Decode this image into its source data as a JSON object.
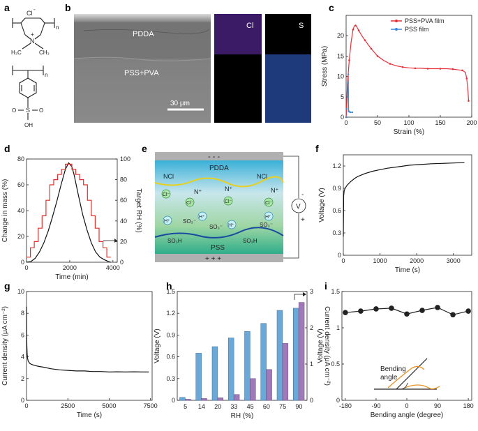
{
  "panel_labels": {
    "a": "a",
    "b": "b",
    "c": "c",
    "d": "d",
    "e": "e",
    "f": "f",
    "g": "g",
    "h": "h",
    "i": "i"
  },
  "panel_a": {
    "cl_label": "Cl",
    "minus": "-",
    "plus": "+",
    "n_label": "n",
    "N": "N",
    "ch3_left": "H₃C",
    "ch3_right": "CH₃",
    "s_label": "S",
    "o_label": "O",
    "oh_label": "OH"
  },
  "panel_b": {
    "pdda_label": "PDDA",
    "pss_pva_label": "PSS+PVA",
    "scale_label": "30 μm",
    "map_cl_label": "Cl",
    "map_s_label": "S",
    "colors": {
      "cl_map": "#5a2a8a",
      "s_map": "#3a5ab0"
    }
  },
  "chart_data": [
    {
      "id": "c",
      "type": "line",
      "xlabel": "Strain (%)",
      "ylabel": "Stress (MPa)",
      "xlim": [
        0,
        200
      ],
      "ylim": [
        0,
        25
      ],
      "xticks": [
        0,
        50,
        100,
        150,
        200
      ],
      "yticks": [
        0,
        5,
        10,
        15,
        20
      ],
      "legend": [
        "PSS+PVA film",
        "PSS film"
      ],
      "series": [
        {
          "name": "PSS+PVA film",
          "color": "#e8303a",
          "x": [
            0,
            2,
            5,
            8,
            11,
            13,
            15,
            17,
            20,
            25,
            30,
            35,
            40,
            45,
            50,
            60,
            70,
            80,
            90,
            100,
            110,
            120,
            130,
            140,
            150,
            160,
            170,
            180,
            185,
            190,
            192,
            194,
            195
          ],
          "y": [
            0,
            8,
            14,
            18.5,
            21.5,
            22.4,
            22.5,
            22.2,
            21.3,
            20,
            18.9,
            17.8,
            16.8,
            15.9,
            15,
            13.9,
            13.1,
            12.6,
            12.3,
            12.1,
            12,
            12,
            11.9,
            11.9,
            11.9,
            11.9,
            11.8,
            11.6,
            11.5,
            11,
            9.5,
            6.5,
            4
          ]
        },
        {
          "name": "PSS film",
          "color": "#3a8ad8",
          "x": [
            0,
            1,
            2,
            3,
            3.5,
            4,
            5,
            7,
            10
          ],
          "y": [
            0,
            2,
            5,
            8.5,
            10.5,
            1.5,
            1.3,
            1.2,
            1.2
          ]
        }
      ]
    },
    {
      "id": "d",
      "type": "line",
      "xlabel": "Time (min)",
      "ylabel": "Change in mass (%)",
      "ylabel_right": "Target RH (%)",
      "xlim": [
        0,
        4200
      ],
      "ylim": [
        0,
        80
      ],
      "ylim_right": [
        0,
        100
      ],
      "xticks": [
        0,
        2000,
        4000
      ],
      "yticks": [
        0,
        20,
        40,
        60,
        80
      ],
      "yticks_right": [
        0,
        20,
        40,
        60,
        80,
        100
      ],
      "series": [
        {
          "name": "Change in mass",
          "color": "#111111",
          "x": [
            0,
            200,
            400,
            600,
            800,
            1000,
            1200,
            1400,
            1600,
            1800,
            1950,
            2100,
            2200,
            2400,
            2600,
            2800,
            3000,
            3200,
            3400,
            3600,
            3800,
            3900
          ],
          "y": [
            0,
            0.5,
            3,
            8,
            15,
            24,
            35,
            47,
            60,
            72,
            77,
            74,
            68,
            52,
            37,
            25,
            15,
            8,
            4,
            2,
            0.5,
            0
          ]
        },
        {
          "name": "Target RH",
          "color": "#e0302a",
          "axis": "right",
          "x": [
            0,
            180,
            180,
            360,
            360,
            540,
            540,
            720,
            720,
            900,
            900,
            1080,
            1080,
            1260,
            1260,
            1440,
            1440,
            1620,
            1620,
            1800,
            1800,
            2100,
            2100,
            2280,
            2280,
            2460,
            2460,
            2640,
            2640,
            2820,
            2820,
            3000,
            3000,
            3180,
            3180,
            3360,
            3360,
            3540,
            3540,
            3720,
            3720,
            3900
          ],
          "y": [
            5,
            5,
            14,
            14,
            20,
            20,
            33,
            33,
            45,
            45,
            60,
            60,
            75,
            75,
            80,
            80,
            85,
            85,
            90,
            90,
            95,
            95,
            90,
            90,
            85,
            85,
            80,
            80,
            75,
            75,
            60,
            60,
            45,
            45,
            33,
            33,
            20,
            20,
            14,
            14,
            5,
            5
          ]
        }
      ]
    },
    {
      "id": "f",
      "type": "line",
      "xlabel": "Time (s)",
      "ylabel": "Voltage (V)",
      "xlim": [
        0,
        3500
      ],
      "ylim": [
        0,
        1.35
      ],
      "xticks": [
        0,
        1000,
        2000,
        3000
      ],
      "yticks": [
        0,
        0.3,
        0.6,
        0.9,
        1.2
      ],
      "series": [
        {
          "name": "Voltage",
          "color": "#111111",
          "x": [
            0,
            10,
            25,
            50,
            100,
            200,
            300,
            400,
            600,
            800,
            1000,
            1200,
            1500,
            1800,
            2100,
            2400,
            2700,
            3000,
            3300
          ],
          "y": [
            0.25,
            0.8,
            0.87,
            0.9,
            0.94,
            0.99,
            1.03,
            1.06,
            1.1,
            1.13,
            1.15,
            1.17,
            1.19,
            1.21,
            1.22,
            1.23,
            1.235,
            1.24,
            1.245
          ]
        }
      ]
    },
    {
      "id": "g",
      "type": "line",
      "xlabel": "Time (s)",
      "ylabel": "Current density (μA cm⁻²)",
      "xlim": [
        0,
        7600
      ],
      "ylim": [
        0,
        10
      ],
      "xticks": [
        0,
        2500,
        5000,
        7500
      ],
      "yticks": [
        0,
        2,
        4,
        6,
        8,
        10
      ],
      "series": [
        {
          "name": "Current density",
          "color": "#111111",
          "x": [
            0,
            10,
            20,
            40,
            60,
            100,
            200,
            300,
            500,
            800,
            1000,
            1500,
            2000,
            2500,
            3000,
            3500,
            4000,
            4500,
            5000,
            5500,
            6000,
            6500,
            7000,
            7400
          ],
          "y": [
            8.6,
            6.2,
            5,
            4.3,
            3.9,
            3.6,
            3.4,
            3.3,
            3.2,
            3.1,
            3.05,
            2.9,
            2.8,
            2.75,
            2.7,
            2.7,
            2.65,
            2.65,
            2.6,
            2.62,
            2.6,
            2.62,
            2.6,
            2.6
          ]
        }
      ]
    },
    {
      "id": "h",
      "type": "bar",
      "categories": [
        "5",
        "14",
        "20",
        "33",
        "45",
        "60",
        "75",
        "90"
      ],
      "xlabel": "RH (%)",
      "ylabel": "Voltage (V)",
      "ylabel_right": "Current density (μA cm⁻²)",
      "ylim": [
        0,
        1.5
      ],
      "ylim_right": [
        0,
        3
      ],
      "yticks": [
        0,
        0.3,
        0.6,
        0.9,
        1.2,
        1.5
      ],
      "yticks_right": [
        0,
        1,
        2,
        3
      ],
      "series": [
        {
          "name": "Voltage",
          "color": "#6aa8d8",
          "axis": "left",
          "values": [
            0.04,
            0.65,
            0.74,
            0.86,
            0.95,
            1.06,
            1.24,
            1.27
          ]
        },
        {
          "name": "Current density",
          "color": "#a07ab8",
          "axis": "right",
          "values": [
            0.03,
            0.05,
            0.07,
            0.16,
            0.6,
            0.85,
            1.57,
            2.7
          ]
        }
      ]
    },
    {
      "id": "i",
      "type": "scatter",
      "xlabel": "Bending angle (degree)",
      "ylabel": "Voltage (V)",
      "xlim": [
        -190,
        190
      ],
      "ylim": [
        0,
        1.5
      ],
      "xticks": [
        -180,
        -90,
        0,
        90,
        180
      ],
      "yticks": [
        0,
        0.5,
        1,
        1.5
      ],
      "inset_label": "Bending\nangle",
      "series": [
        {
          "name": "Voltage",
          "color": "#222222",
          "x": [
            -180,
            -135,
            -90,
            -45,
            0,
            45,
            90,
            135,
            180
          ],
          "y": [
            1.21,
            1.23,
            1.26,
            1.27,
            1.19,
            1.24,
            1.28,
            1.18,
            1.23
          ]
        }
      ]
    }
  ],
  "panel_e": {
    "pdda_label": "PDDA",
    "pss_label": "PSS",
    "ncl_left": "NCl",
    "ncl_right": "NCl",
    "nplus": [
      "N⁺",
      "N⁺",
      "N⁺"
    ],
    "cl_ions": [
      "Cl⁻",
      "Cl⁻",
      "Cl⁻",
      "Cl⁻"
    ],
    "h_ions": [
      "H⁺",
      "H⁺",
      "H⁺",
      "H⁺",
      "H⁺"
    ],
    "so3": [
      "SO₃⁻",
      "SO₃⁻",
      "SO₃⁻"
    ],
    "so3h": [
      "SO₃H",
      "SO₃H"
    ],
    "top_charges": "- - -",
    "bottom_charges": "+ + +",
    "volt_symbol": "V",
    "minus": "-",
    "plus": "+"
  }
}
